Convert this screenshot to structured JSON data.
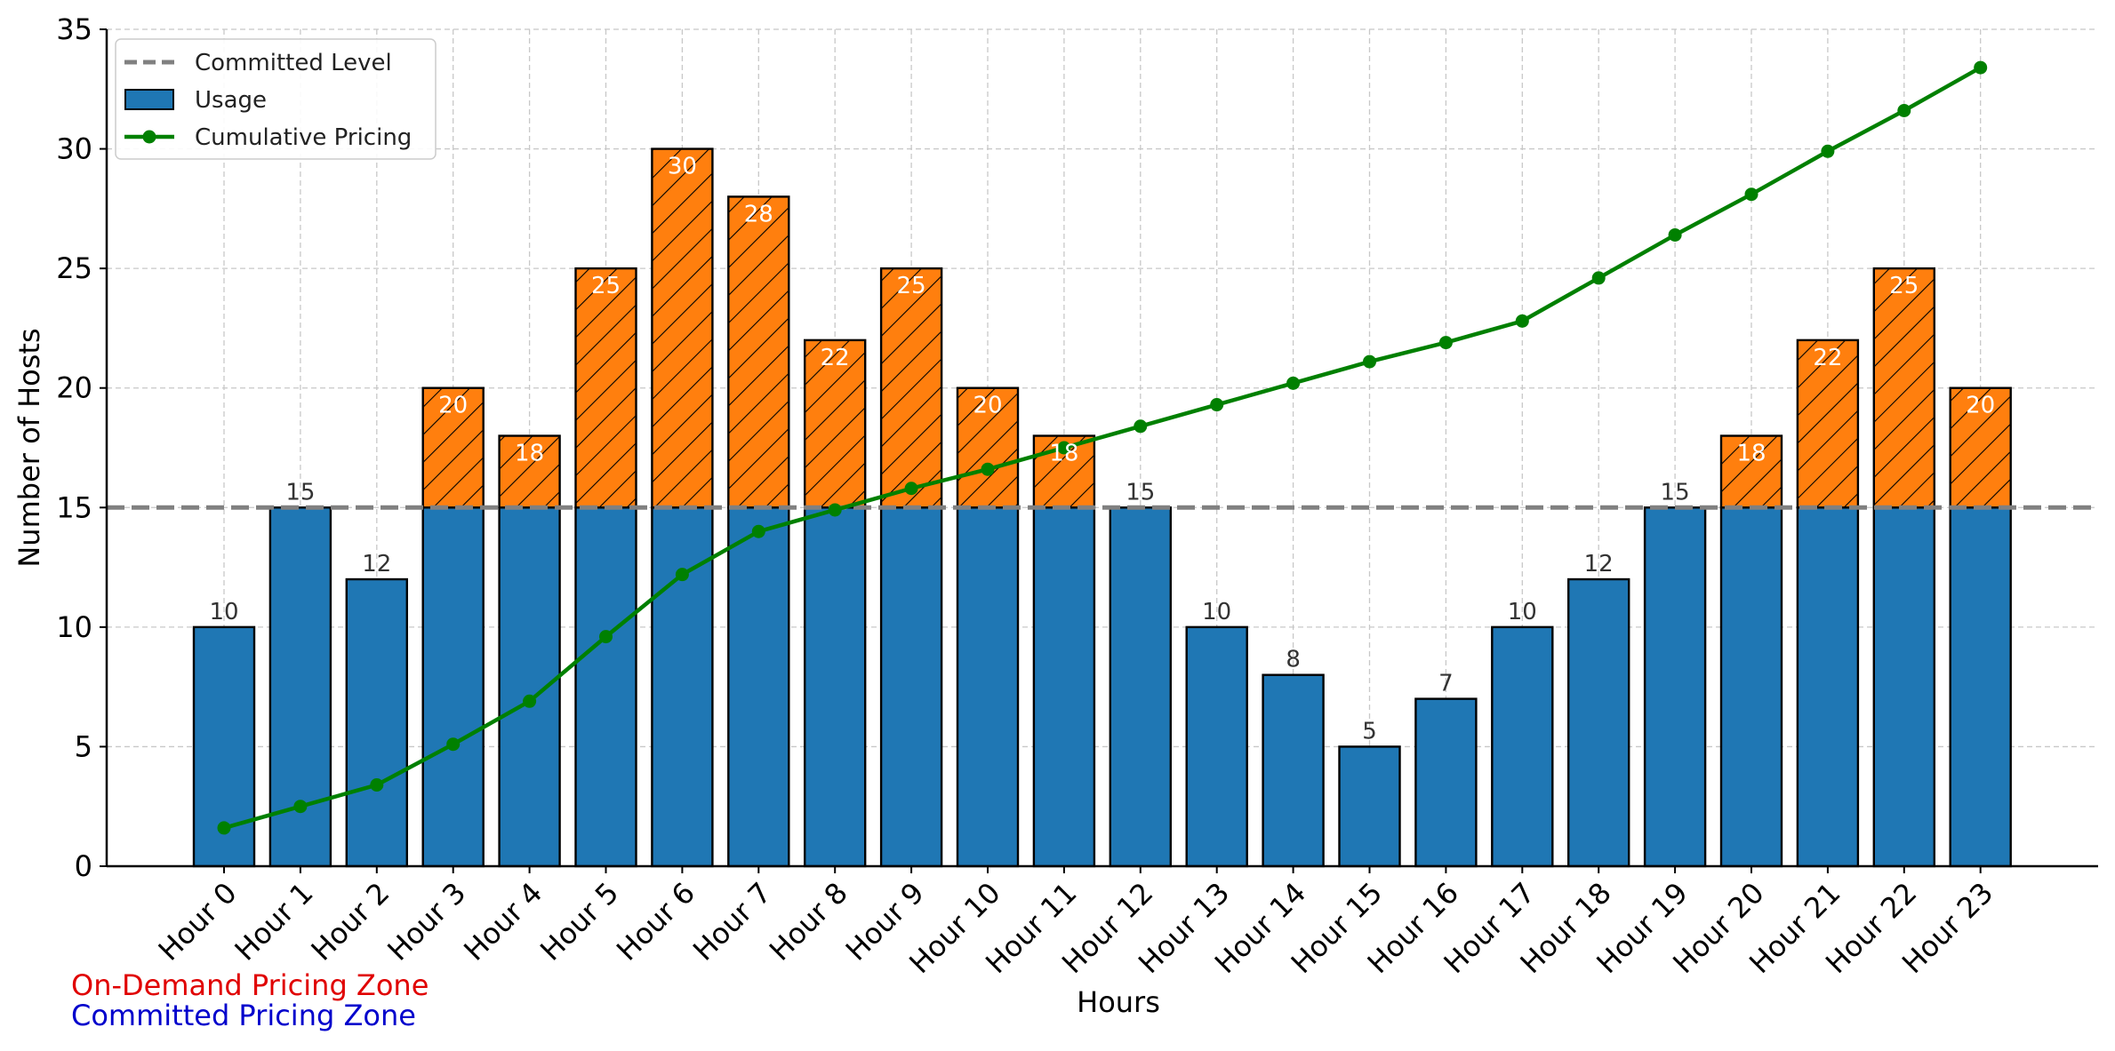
{
  "chart_data": {
    "type": "bar",
    "title": "",
    "xlabel": "Hours",
    "ylabel": "Number of Hosts",
    "ylim": [
      0,
      35
    ],
    "yticks": [
      0,
      5,
      10,
      15,
      20,
      25,
      30,
      35
    ],
    "grid": true,
    "legend_position": "top-left",
    "categories": [
      "Hour 0",
      "Hour 1",
      "Hour 2",
      "Hour 3",
      "Hour 4",
      "Hour 5",
      "Hour 6",
      "Hour 7",
      "Hour 8",
      "Hour 9",
      "Hour 10",
      "Hour 11",
      "Hour 12",
      "Hour 13",
      "Hour 14",
      "Hour 15",
      "Hour 16",
      "Hour 17",
      "Hour 18",
      "Hour 19",
      "Hour 20",
      "Hour 21",
      "Hour 22",
      "Hour 23"
    ],
    "committed_level": 15,
    "series": [
      {
        "name": "Usage",
        "type": "bar",
        "color": "#1f77b4",
        "overage_color": "#ff7f0e",
        "values": [
          10,
          15,
          12,
          20,
          18,
          25,
          30,
          28,
          22,
          25,
          20,
          18,
          15,
          10,
          8,
          5,
          7,
          10,
          12,
          15,
          18,
          22,
          25,
          20
        ]
      },
      {
        "name": "Cumulative Pricing",
        "type": "line",
        "color": "#008000",
        "values": [
          1.6,
          2.5,
          3.4,
          5.1,
          6.9,
          9.6,
          12.2,
          14.0,
          14.9,
          15.8,
          16.6,
          17.5,
          18.4,
          19.3,
          20.2,
          21.1,
          21.9,
          22.8,
          24.6,
          26.4,
          28.1,
          29.9,
          31.6,
          33.4
        ]
      }
    ],
    "legend": [
      {
        "label": "Committed Level",
        "kind": "dashed-line",
        "color": "#808080"
      },
      {
        "label": "Usage",
        "kind": "box",
        "color": "#1f77b4"
      },
      {
        "label": "Cumulative Pricing",
        "kind": "line-marker",
        "color": "#008000"
      }
    ],
    "annotations": [
      {
        "text": "On-Demand Pricing Zone",
        "color": "#e00000"
      },
      {
        "text": "Committed Pricing Zone",
        "color": "#0000cc"
      }
    ]
  }
}
